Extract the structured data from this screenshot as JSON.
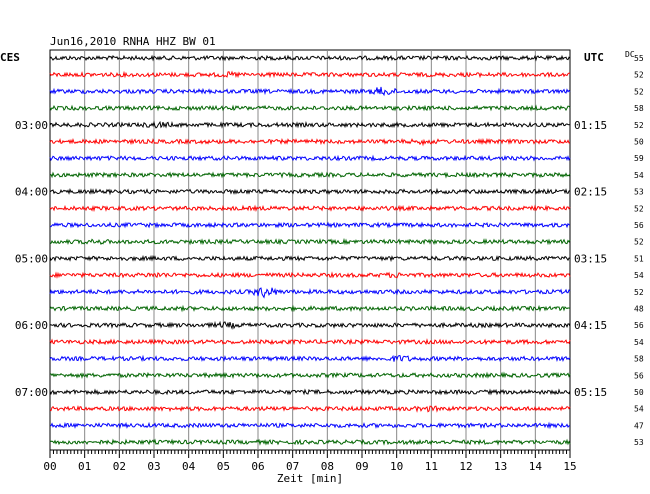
{
  "chart_data": {
    "type": "line",
    "title": "Jun16,2010   RNHA HHZ BW 01",
    "left_timezone": "CES",
    "right_timezone": "UTC",
    "dc_label": "DC",
    "xlabel": "Zeit [min]",
    "xlim": [
      0,
      15
    ],
    "x_ticks": [
      "00",
      "01",
      "02",
      "03",
      "04",
      "05",
      "06",
      "07",
      "08",
      "09",
      "10",
      "11",
      "12",
      "13",
      "14",
      "15"
    ],
    "grid": true,
    "trace_colors": [
      "#000000",
      "#ff0000",
      "#0000ff",
      "#006400"
    ],
    "left_hour_labels": [
      {
        "trace": 4,
        "label": "03:00"
      },
      {
        "trace": 8,
        "label": "04:00"
      },
      {
        "trace": 12,
        "label": "05:00"
      },
      {
        "trace": 16,
        "label": "06:00"
      },
      {
        "trace": 20,
        "label": "07:00"
      }
    ],
    "right_hour_labels": [
      {
        "trace": 4,
        "label": "01:15"
      },
      {
        "trace": 8,
        "label": "02:15"
      },
      {
        "trace": 12,
        "label": "03:15"
      },
      {
        "trace": 16,
        "label": "04:15"
      },
      {
        "trace": 20,
        "label": "05:15"
      }
    ],
    "dc_values": [
      "55",
      "52",
      "52",
      "58",
      "52",
      "50",
      "59",
      "54",
      "53",
      "52",
      "56",
      "52",
      "51",
      "54",
      "52",
      "48",
      "56",
      "54",
      "58",
      "56",
      "50",
      "54",
      "47",
      "53"
    ],
    "events": [
      {
        "trace": 1,
        "minute": 5.2,
        "amplitude": 1.5
      },
      {
        "trace": 2,
        "minute": 9.6,
        "amplitude": 2.6
      },
      {
        "trace": 4,
        "minute": 3.1,
        "amplitude": 1.8
      },
      {
        "trace": 5,
        "minute": 10.8,
        "amplitude": 1.6
      },
      {
        "trace": 11,
        "minute": 1.3,
        "amplitude": 1.4
      },
      {
        "trace": 13,
        "minute": 3.1,
        "amplitude": 1.5
      },
      {
        "trace": 13,
        "minute": 10.0,
        "amplitude": 1.5
      },
      {
        "trace": 14,
        "minute": 6.2,
        "amplitude": 3.2
      },
      {
        "trace": 16,
        "minute": 5.1,
        "amplitude": 1.8
      },
      {
        "trace": 18,
        "minute": 10.1,
        "amplitude": 1.9
      },
      {
        "trace": 21,
        "minute": 10.9,
        "amplitude": 1.6
      }
    ]
  }
}
